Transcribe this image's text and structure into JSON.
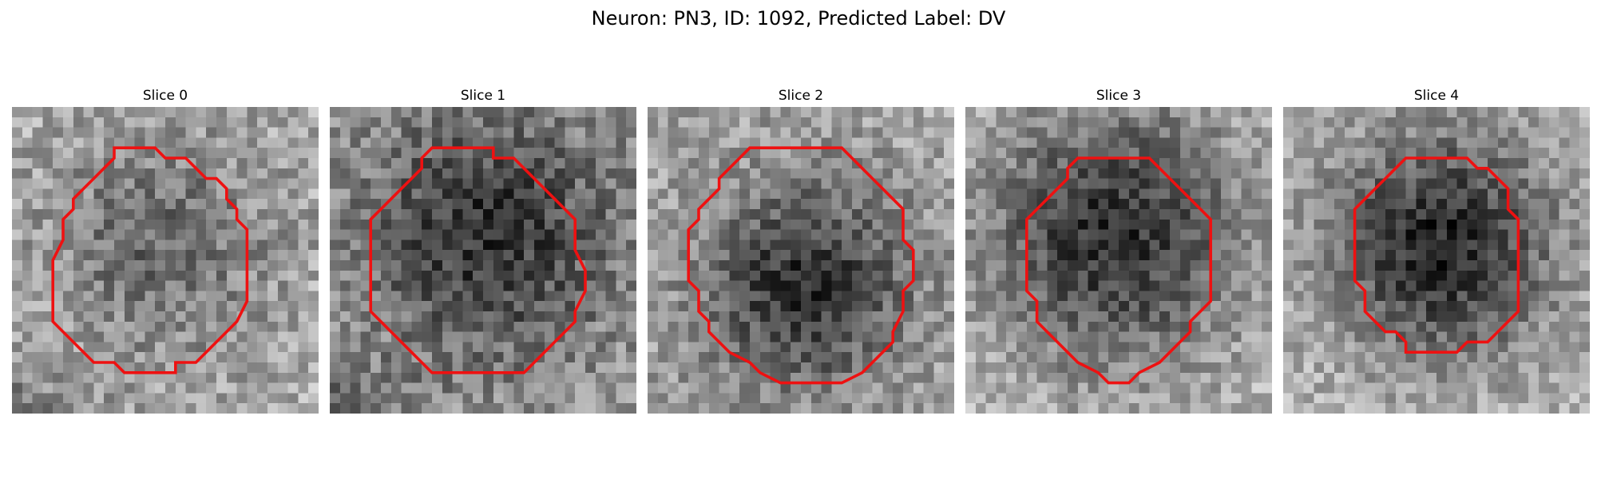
{
  "figure": {
    "title": "Neuron: PN3, ID: 1092, Predicted Label: DV"
  },
  "colors": {
    "contour": "#ee1111",
    "background": "#ffffff"
  },
  "panels": [
    {
      "title": "Slice 0",
      "seed": 11
    },
    {
      "title": "Slice 1",
      "seed": 23
    },
    {
      "title": "Slice 2",
      "seed": 37
    },
    {
      "title": "Slice 3",
      "seed": 41
    },
    {
      "title": "Slice 4",
      "seed": 53
    }
  ]
}
